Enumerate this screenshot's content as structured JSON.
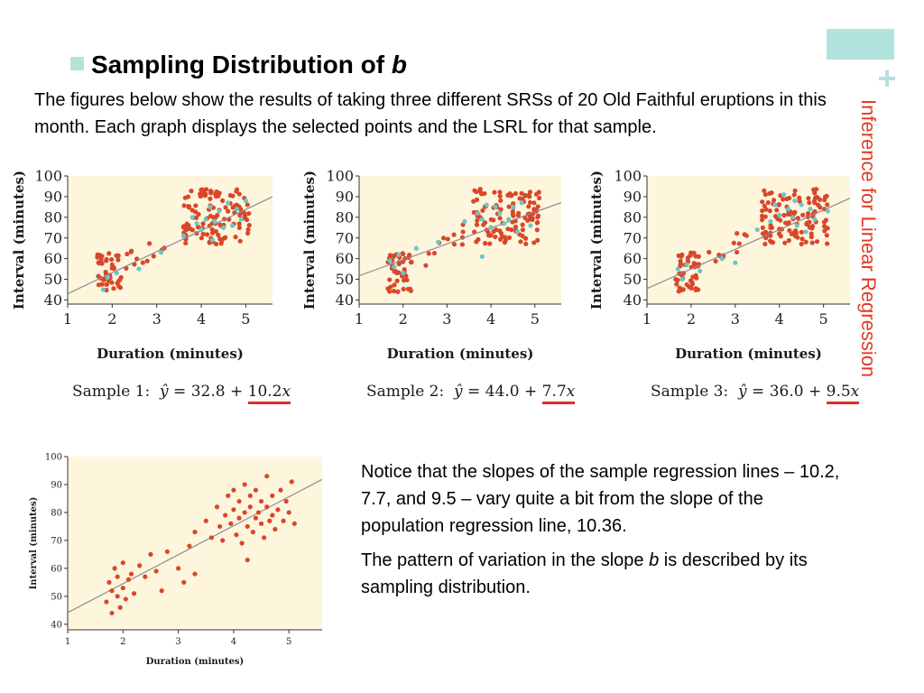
{
  "slide": {
    "heading_prefix": "Sampling Distribution of ",
    "heading_var": "b",
    "side_title": "Inference for Linear Regression",
    "intro": "The figures below show the results of taking three different SRSs of 20 Old Faithful eruptions in this month. Each graph displays the selected points and the LSRL for that sample.",
    "note1": "Notice that the slopes of the sample regression lines – 10.2, 7.7, and 9.5 – vary quite a bit from the slope of the population regression line, 10.36.",
    "note2_pre": "The pattern of variation in the slope ",
    "note2_var": "b",
    "note2_post": " is described by its sampling distribution.",
    "plus": "+"
  },
  "colors": {
    "accent": "#b3e3dd",
    "side_title": "#e03c24",
    "plot_bg": "#fdf6dc",
    "population_point": "#d9472b",
    "sample_point": "#6cc6c6",
    "regression_line": "#8c8c9a",
    "underline": "#d9302a"
  },
  "samples": [
    {
      "label": "Sample 1:",
      "yhat": "ŷ",
      "eq_mid": " = 32.8 + ",
      "slope_term": "10.2",
      "x_var": "x"
    },
    {
      "label": "Sample 2:",
      "yhat": "ŷ",
      "eq_mid": " = 44.0 + ",
      "slope_term": "7.7",
      "x_var": "x"
    },
    {
      "label": "Sample 3:",
      "yhat": "ŷ",
      "eq_mid": " = 36.0 + ",
      "slope_term": "9.5",
      "x_var": "x"
    }
  ],
  "chart_data": [
    {
      "type": "scatter",
      "title": "",
      "xlabel": "Duration (minutes)",
      "ylabel": "Interval (minutes)",
      "xlim": [
        1,
        5.6
      ],
      "ylim": [
        38,
        100
      ],
      "x_ticks": [
        1,
        2,
        3,
        4,
        5
      ],
      "y_ticks": [
        40,
        50,
        60,
        70,
        80,
        90,
        100
      ],
      "regression_line": {
        "intercept": 32.8,
        "slope": 10.2
      },
      "series": [
        {
          "values": [
            [
              1.8,
              45
            ],
            [
              1.9,
              51
            ],
            [
              2.1,
              53
            ],
            [
              2.6,
              55
            ],
            [
              3.1,
              63
            ],
            [
              3.6,
              71
            ],
            [
              3.8,
              80
            ],
            [
              4.0,
              74
            ],
            [
              4.1,
              79
            ],
            [
              4.2,
              85
            ],
            [
              4.3,
              78
            ],
            [
              4.4,
              83
            ],
            [
              4.5,
              75
            ],
            [
              4.6,
              87
            ],
            [
              4.7,
              76
            ],
            [
              4.8,
              84
            ],
            [
              4.9,
              79
            ],
            [
              5.0,
              88
            ],
            [
              4.25,
              69
            ],
            [
              3.9,
              77
            ]
          ]
        }
      ]
    },
    {
      "type": "scatter",
      "title": "",
      "xlabel": "Duration (minutes)",
      "ylabel": "Interval (minutes)",
      "xlim": [
        1,
        5.6
      ],
      "ylim": [
        38,
        100
      ],
      "x_ticks": [
        1,
        2,
        3,
        4,
        5
      ],
      "y_ticks": [
        40,
        50,
        60,
        70,
        80,
        90,
        100
      ],
      "regression_line": {
        "intercept": 44.0,
        "slope": 7.7
      },
      "series": [
        {
          "values": [
            [
              1.7,
              59
            ],
            [
              1.8,
              56
            ],
            [
              1.9,
              62
            ],
            [
              2.0,
              53
            ],
            [
              2.3,
              65
            ],
            [
              2.8,
              68
            ],
            [
              3.4,
              78
            ],
            [
              3.7,
              82
            ],
            [
              3.8,
              79
            ],
            [
              3.9,
              86
            ],
            [
              4.0,
              75
            ],
            [
              4.1,
              85
            ],
            [
              4.2,
              82
            ],
            [
              4.3,
              77
            ],
            [
              4.4,
              79
            ],
            [
              4.5,
              85
            ],
            [
              4.6,
              73
            ],
            [
              4.7,
              87
            ],
            [
              3.8,
              61
            ],
            [
              4.9,
              76
            ]
          ]
        }
      ]
    },
    {
      "type": "scatter",
      "title": "",
      "xlabel": "Duration (minutes)",
      "ylabel": "Interval (minutes)",
      "xlim": [
        1,
        5.6
      ],
      "ylim": [
        38,
        100
      ],
      "x_ticks": [
        1,
        2,
        3,
        4,
        5
      ],
      "y_ticks": [
        40,
        50,
        60,
        70,
        80,
        90,
        100
      ],
      "regression_line": {
        "intercept": 36.0,
        "slope": 9.5
      },
      "series": [
        {
          "values": [
            [
              1.7,
              55
            ],
            [
              1.8,
              50
            ],
            [
              1.9,
              57
            ],
            [
              2.2,
              54
            ],
            [
              2.7,
              60
            ],
            [
              3.0,
              58
            ],
            [
              3.5,
              74
            ],
            [
              3.8,
              78
            ],
            [
              4.0,
              81
            ],
            [
              4.1,
              91
            ],
            [
              4.2,
              84
            ],
            [
              4.3,
              80
            ],
            [
              4.4,
              76
            ],
            [
              4.5,
              86
            ],
            [
              4.6,
              73
            ],
            [
              4.7,
              84
            ],
            [
              4.8,
              79
            ],
            [
              5.1,
              83
            ],
            [
              3.9,
              86
            ],
            [
              4.35,
              88
            ]
          ]
        }
      ]
    },
    {
      "type": "scatter",
      "title": "",
      "xlabel": "Duration (minutes)",
      "ylabel": "Interval (minutes)",
      "xlim": [
        1,
        5.6
      ],
      "ylim": [
        38,
        100
      ],
      "x_ticks": [
        1,
        2,
        3,
        4,
        5
      ],
      "y_ticks": [
        40,
        50,
        60,
        70,
        80,
        90,
        100
      ],
      "regression_line": {
        "intercept": 33.8,
        "slope": 10.36
      },
      "series": [
        {
          "values": [
            [
              1.7,
              48
            ],
            [
              1.75,
              55
            ],
            [
              1.8,
              52
            ],
            [
              1.8,
              44
            ],
            [
              1.85,
              60
            ],
            [
              1.9,
              50
            ],
            [
              1.9,
              57
            ],
            [
              1.95,
              46
            ],
            [
              2.0,
              53
            ],
            [
              2.0,
              62
            ],
            [
              2.05,
              49
            ],
            [
              2.1,
              56
            ],
            [
              2.15,
              58
            ],
            [
              2.2,
              51
            ],
            [
              2.3,
              61
            ],
            [
              2.4,
              57
            ],
            [
              2.5,
              65
            ],
            [
              2.6,
              59
            ],
            [
              2.8,
              66
            ],
            [
              3.0,
              60
            ],
            [
              3.1,
              55
            ],
            [
              3.2,
              68
            ],
            [
              3.3,
              73
            ],
            [
              3.5,
              77
            ],
            [
              3.6,
              71
            ],
            [
              3.7,
              82
            ],
            [
              3.75,
              75
            ],
            [
              3.8,
              70
            ],
            [
              3.85,
              79
            ],
            [
              3.9,
              86
            ],
            [
              3.95,
              76
            ],
            [
              4.0,
              81
            ],
            [
              4.0,
              88
            ],
            [
              4.05,
              72
            ],
            [
              4.1,
              78
            ],
            [
              4.1,
              84
            ],
            [
              4.15,
              69
            ],
            [
              4.2,
              80
            ],
            [
              4.2,
              90
            ],
            [
              4.25,
              75
            ],
            [
              4.3,
              82
            ],
            [
              4.3,
              86
            ],
            [
              4.35,
              73
            ],
            [
              4.4,
              78
            ],
            [
              4.4,
              88
            ],
            [
              4.45,
              80
            ],
            [
              4.5,
              76
            ],
            [
              4.5,
              84
            ],
            [
              4.55,
              71
            ],
            [
              4.6,
              82
            ],
            [
              4.6,
              93
            ],
            [
              4.65,
              77
            ],
            [
              4.7,
              79
            ],
            [
              4.7,
              86
            ],
            [
              4.75,
              74
            ],
            [
              4.8,
              81
            ],
            [
              4.85,
              88
            ],
            [
              4.9,
              77
            ],
            [
              4.95,
              84
            ],
            [
              5.0,
              80
            ],
            [
              5.05,
              91
            ],
            [
              5.1,
              76
            ],
            [
              4.25,
              63
            ],
            [
              3.3,
              58
            ],
            [
              2.7,
              52
            ]
          ]
        }
      ]
    }
  ]
}
